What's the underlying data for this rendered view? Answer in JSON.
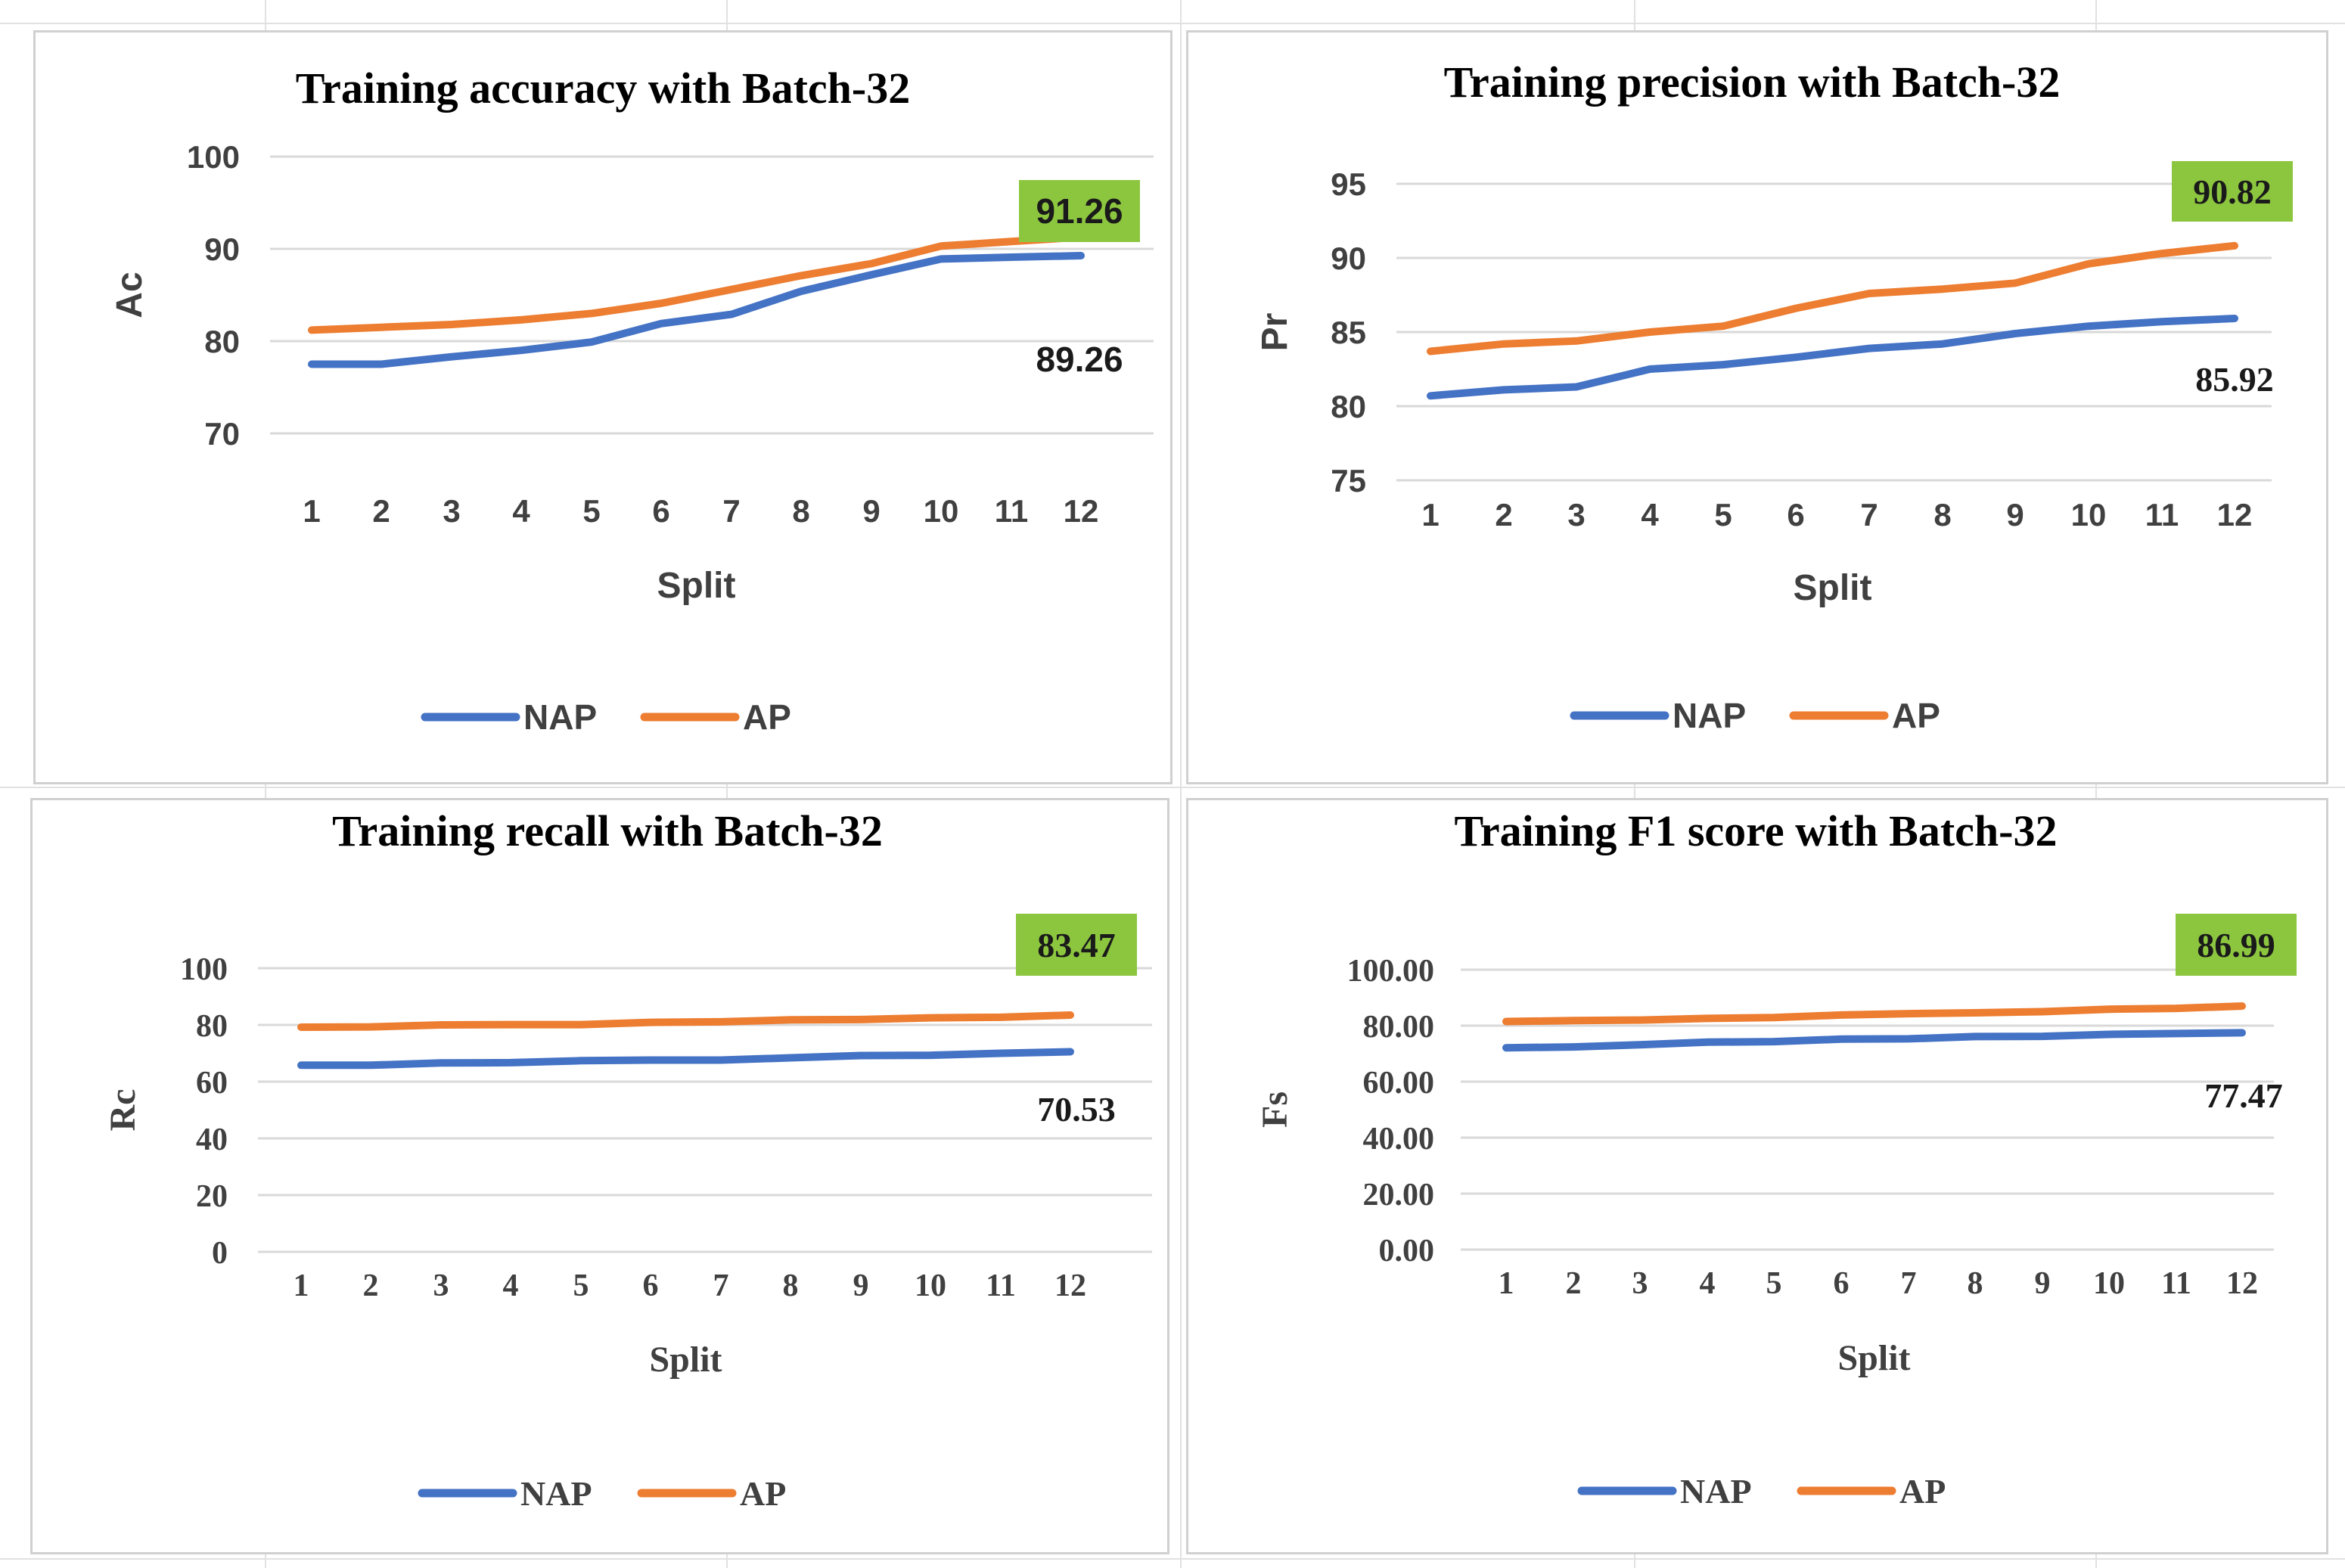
{
  "colors": {
    "nap": "#4472C4",
    "ap": "#ED7D31",
    "highlight": "#8CC63F",
    "text": "#404040",
    "grid": "#d9d9d9"
  },
  "chart_data": [
    {
      "type": "line",
      "title": "Training accuracy with Batch-32",
      "xlabel": "Split",
      "ylabel": "Ac",
      "categories": [
        "1",
        "2",
        "3",
        "4",
        "5",
        "6",
        "7",
        "8",
        "9",
        "10",
        "11",
        "12"
      ],
      "ylim": [
        70,
        100
      ],
      "yticks": [
        70,
        80,
        90,
        100
      ],
      "ytick_labels": [
        "70",
        "80",
        "90",
        "100"
      ],
      "grid": true,
      "legend_position": "bottom",
      "series": [
        {
          "name": "NAP",
          "values": [
            77.5,
            77.5,
            78.3,
            79.0,
            79.9,
            81.9,
            82.9,
            85.4,
            87.2,
            88.9,
            89.1,
            89.26
          ]
        },
        {
          "name": "AP",
          "values": [
            81.2,
            81.5,
            81.8,
            82.3,
            83.0,
            84.1,
            85.6,
            87.1,
            88.4,
            90.3,
            90.8,
            91.26
          ]
        }
      ],
      "annotations": {
        "ap_end_label": "91.26",
        "nap_end_label": "89.26"
      }
    },
    {
      "type": "line",
      "title": "Training precision with Batch-32",
      "xlabel": "Split",
      "ylabel": "Pr",
      "categories": [
        "1",
        "2",
        "3",
        "4",
        "5",
        "6",
        "7",
        "8",
        "9",
        "10",
        "11",
        "12"
      ],
      "ylim": [
        75,
        95
      ],
      "yticks": [
        75,
        80,
        85,
        90,
        95
      ],
      "ytick_labels": [
        "75",
        "80",
        "85",
        "90",
        "95"
      ],
      "grid": true,
      "legend_position": "bottom",
      "series": [
        {
          "name": "NAP",
          "values": [
            80.7,
            81.1,
            81.3,
            82.5,
            82.8,
            83.3,
            83.9,
            84.2,
            84.9,
            85.4,
            85.7,
            85.92
          ]
        },
        {
          "name": "AP",
          "values": [
            83.7,
            84.2,
            84.4,
            85.0,
            85.4,
            86.6,
            87.6,
            87.9,
            88.3,
            89.6,
            90.3,
            90.82
          ]
        }
      ],
      "annotations": {
        "ap_end_label": "90.82",
        "nap_end_label": "85.92"
      }
    },
    {
      "type": "line",
      "title": "Training recall with Batch-32",
      "xlabel": "Split",
      "ylabel": "Rc",
      "categories": [
        "1",
        "2",
        "3",
        "4",
        "5",
        "6",
        "7",
        "8",
        "9",
        "10",
        "11",
        "12"
      ],
      "ylim": [
        0,
        100
      ],
      "yticks": [
        0,
        20,
        40,
        60,
        80,
        100
      ],
      "ytick_labels": [
        "0",
        "20",
        "40",
        "60",
        "80",
        "100"
      ],
      "grid": true,
      "legend_position": "bottom",
      "series": [
        {
          "name": "NAP",
          "values": [
            65.8,
            65.8,
            66.6,
            66.7,
            67.4,
            67.6,
            67.6,
            68.4,
            69.2,
            69.3,
            70.0,
            70.53
          ]
        },
        {
          "name": "AP",
          "values": [
            79.2,
            79.3,
            80.0,
            80.1,
            80.1,
            80.9,
            81.1,
            81.8,
            81.9,
            82.5,
            82.7,
            83.47
          ]
        }
      ],
      "annotations": {
        "ap_end_label": "83.47",
        "nap_end_label": "70.53"
      }
    },
    {
      "type": "line",
      "title": "Training F1 score with Batch-32",
      "xlabel": "Split",
      "ylabel": "Fs",
      "categories": [
        "1",
        "2",
        "3",
        "4",
        "5",
        "6",
        "7",
        "8",
        "9",
        "10",
        "11",
        "12"
      ],
      "ylim": [
        0,
        100
      ],
      "yticks": [
        0,
        20,
        40,
        60,
        80,
        100
      ],
      "ytick_labels": [
        "0.00",
        "20.00",
        "40.00",
        "60.00",
        "80.00",
        "100.00"
      ],
      "grid": true,
      "legend_position": "bottom",
      "series": [
        {
          "name": "NAP",
          "values": [
            72.1,
            72.4,
            73.2,
            74.1,
            74.3,
            75.2,
            75.3,
            76.1,
            76.2,
            76.9,
            77.2,
            77.47
          ]
        },
        {
          "name": "AP",
          "values": [
            81.5,
            81.8,
            82.0,
            82.6,
            82.9,
            83.8,
            84.3,
            84.6,
            85.0,
            85.9,
            86.2,
            86.99
          ]
        }
      ],
      "annotations": {
        "ap_end_label": "86.99",
        "nap_end_label": "77.47"
      }
    }
  ]
}
